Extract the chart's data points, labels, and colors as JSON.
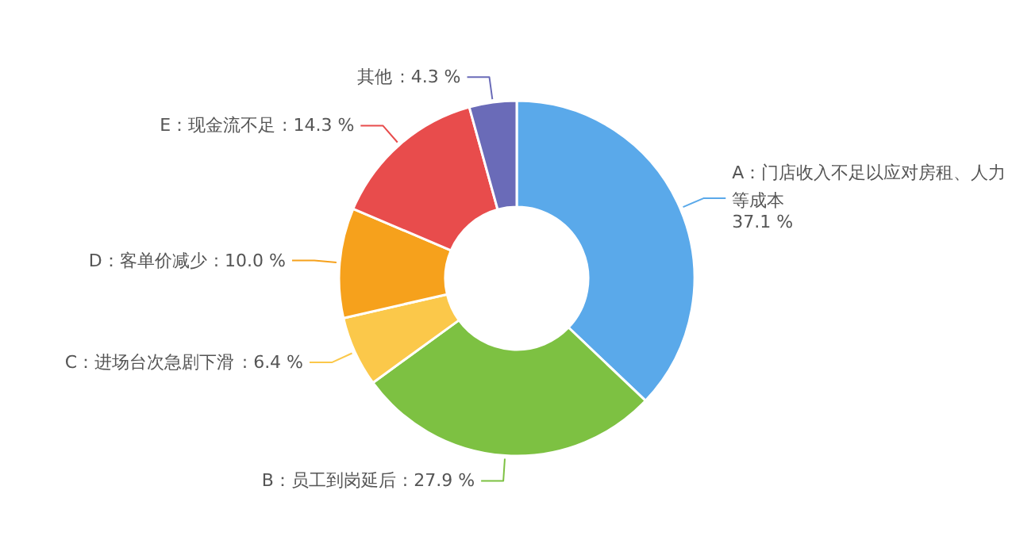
{
  "chart_data": {
    "type": "donut",
    "categories": [
      "A：门店收入不足以应对房租、人力等成本",
      "B：员工到岗延后",
      "C：进场台次急剧下滑",
      "D：客单价减少",
      "E：现金流不足",
      "其他"
    ],
    "value_labels": [
      "37.1 %",
      ": 27.9 %",
      ": 6.4 %",
      ": 10.0 %",
      ": 14.3 %",
      ": 4.3 %"
    ],
    "values": [
      37.1,
      27.9,
      6.4,
      10.0,
      14.3,
      4.3
    ],
    "colors": [
      "#5aa9ea",
      "#7dc142",
      "#fbc84a",
      "#f6a11c",
      "#e84c4c",
      "#6a6bb8"
    ],
    "data_labels": true
  }
}
